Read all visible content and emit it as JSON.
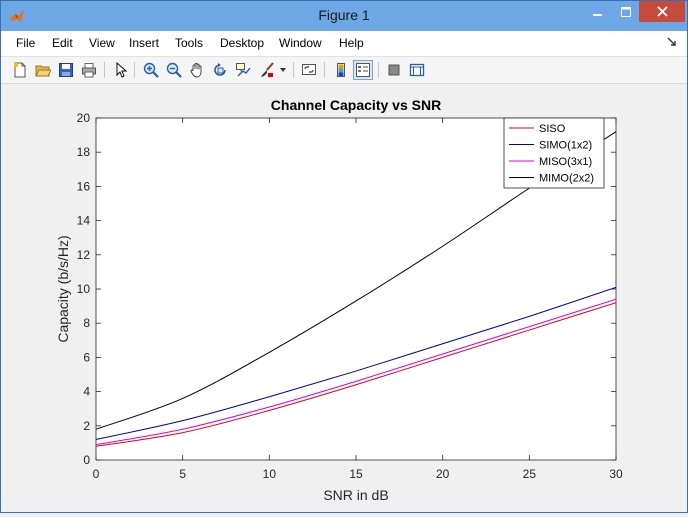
{
  "window": {
    "title": "Figure 1",
    "controls": [
      "minimize",
      "maximize",
      "close"
    ]
  },
  "menu": [
    "File",
    "Edit",
    "View",
    "Insert",
    "Tools",
    "Desktop",
    "Window",
    "Help"
  ],
  "toolbar": {
    "buttons": [
      {
        "name": "new-figure-icon"
      },
      {
        "name": "open-file-icon"
      },
      {
        "name": "save-icon"
      },
      {
        "name": "print-icon"
      },
      {
        "name": "edit-plot-arrow-icon"
      },
      {
        "name": "zoom-in-icon"
      },
      {
        "name": "zoom-out-icon"
      },
      {
        "name": "pan-hand-icon"
      },
      {
        "name": "rotate-3d-icon"
      },
      {
        "name": "data-cursor-icon"
      },
      {
        "name": "brush-icon"
      },
      {
        "name": "link-plot-icon"
      },
      {
        "name": "insert-colorbar-icon"
      },
      {
        "name": "insert-legend-icon"
      },
      {
        "name": "hide-plot-tools-icon"
      },
      {
        "name": "show-plot-tools-icon"
      }
    ]
  },
  "colors": {
    "SISO": "#e0001b",
    "SIMO": "#0000a8",
    "MISO": "#e000c8",
    "MIMO": "#000000"
  },
  "chart_data": {
    "type": "line",
    "title": "Channel Capacity vs SNR",
    "xlabel": "SNR in dB",
    "ylabel": "Capacity (b/s/Hz)",
    "xlim": [
      0,
      30
    ],
    "ylim": [
      0,
      20
    ],
    "xticks": [
      "0",
      "5",
      "10",
      "15",
      "20",
      "25",
      "30"
    ],
    "yticks": [
      "0",
      "2",
      "4",
      "6",
      "8",
      "10",
      "12",
      "14",
      "16",
      "18",
      "20"
    ],
    "grid": false,
    "legend_position": "top-right",
    "x": [
      0,
      5,
      10,
      15,
      20,
      25,
      30
    ],
    "series": [
      {
        "name": "SISO",
        "values": [
          0.8,
          1.6,
          2.9,
          4.4,
          6.0,
          7.6,
          9.2
        ]
      },
      {
        "name": "SIMO(1x2)",
        "values": [
          1.2,
          2.3,
          3.7,
          5.2,
          6.8,
          8.4,
          10.1
        ]
      },
      {
        "name": "MISO(3x1)",
        "values": [
          0.9,
          1.8,
          3.1,
          4.6,
          6.2,
          7.8,
          9.4
        ]
      },
      {
        "name": "MIMO(2x2)",
        "values": [
          1.8,
          3.6,
          6.3,
          9.3,
          12.5,
          15.9,
          19.2
        ]
      }
    ]
  }
}
